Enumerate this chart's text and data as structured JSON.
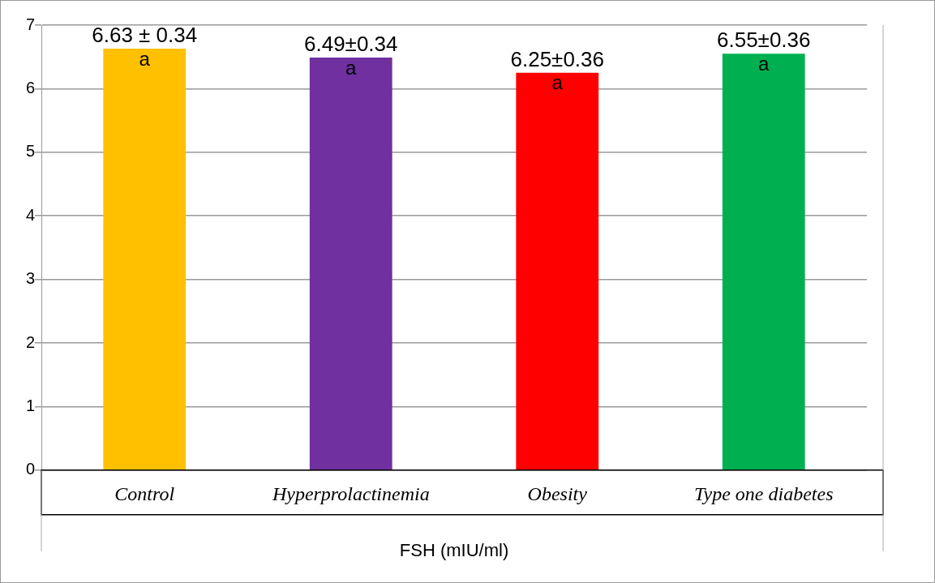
{
  "chart_data": {
    "type": "bar",
    "xlabel": "FSH (mIU/ml)",
    "categories": [
      "Control",
      "Hyperprolactinemia",
      "Obesity",
      "Type one diabetes"
    ],
    "values": [
      6.63,
      6.49,
      6.25,
      6.55
    ],
    "colors": [
      "#ffc000",
      "#7030a0",
      "#ff0000",
      "#00b050"
    ],
    "value_labels": [
      "6.63 ± 0.34",
      "6.49±0.34",
      "6.25±0.36",
      "6.55±0.36"
    ],
    "annotations": [
      {
        "text": "a",
        "x": "Control",
        "y": 6.63
      },
      {
        "text": "a",
        "x": "Hyperprolactinemia",
        "y": 6.49
      },
      {
        "text": "a",
        "x": "Obesity",
        "y": 6.25
      },
      {
        "text": "a",
        "x": "Type one diabetes",
        "y": 6.55
      }
    ],
    "ylim": [
      0,
      7
    ],
    "yticks": [
      0,
      1,
      2,
      3,
      4,
      5,
      6,
      7
    ],
    "grid": "y",
    "legend": false
  }
}
